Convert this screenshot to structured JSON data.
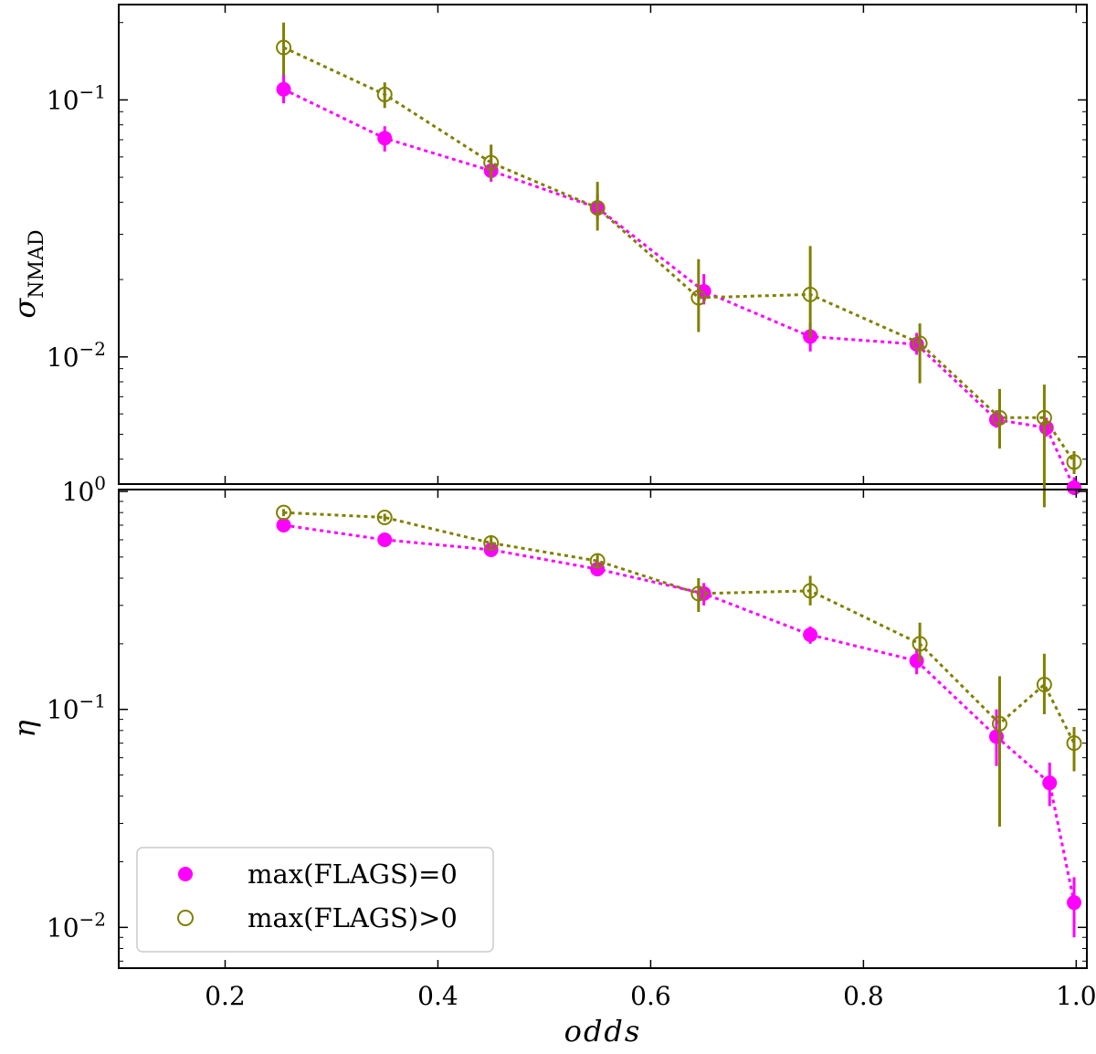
{
  "chart_data": {
    "type": "line",
    "xlabel": "odds",
    "xlim": [
      0.1,
      1.01
    ],
    "x_ticks": [
      {
        "v": 0.2,
        "t": "0.2"
      },
      {
        "v": 0.4,
        "t": "0.4"
      },
      {
        "v": 0.6,
        "t": "0.6"
      },
      {
        "v": 0.8,
        "t": "0.8"
      },
      {
        "v": 1.0,
        "t": "1.0"
      }
    ],
    "legend": {
      "position": "lower-left",
      "entries": [
        {
          "label": "max(FLAGS)=0",
          "marker": "filled-circle",
          "color": "#ff00ff"
        },
        {
          "label": "max(FLAGS)>0",
          "marker": "open-circle",
          "color": "#808000"
        }
      ]
    },
    "panels": [
      {
        "id": "sigma",
        "ylabel": "σ",
        "ylabel_sub": "NMAD",
        "yscale": "log",
        "ylim": [
          0.0032,
          0.235
        ],
        "y_ticks": [
          {
            "v": 0.1,
            "base": "10",
            "exp": "−1"
          },
          {
            "v": 0.01,
            "base": "10",
            "exp": "−2"
          }
        ],
        "series": [
          {
            "name": "max(FLAGS)=0",
            "color": "#ff00ff",
            "marker": "filled",
            "x": [
              0.255,
              0.35,
              0.45,
              0.55,
              0.65,
              0.75,
              0.85,
              0.925,
              0.972,
              0.998
            ],
            "y": [
              0.11,
              0.071,
              0.053,
              0.038,
              0.018,
              0.012,
              0.0112,
              0.0057,
              0.0053,
              0.0031
            ],
            "err": [
              [
                0.097,
                0.128
              ],
              [
                0.063,
                0.079
              ],
              [
                0.048,
                0.059
              ],
              [
                0.034,
                0.043
              ],
              [
                0.016,
                0.021
              ],
              [
                0.0105,
                0.0135
              ],
              [
                0.0102,
                0.0124
              ],
              [
                0.0053,
                0.0062
              ],
              [
                0.0049,
                0.0058
              ],
              [
                0.0029,
                0.0034
              ]
            ]
          },
          {
            "name": "max(FLAGS)>0",
            "color": "#808000",
            "marker": "open",
            "x": [
              0.255,
              0.35,
              0.45,
              0.55,
              0.645,
              0.75,
              0.853,
              0.928,
              0.97,
              0.998
            ],
            "y": [
              0.16,
              0.105,
              0.057,
              0.038,
              0.017,
              0.0175,
              0.0113,
              0.0058,
              0.0058,
              0.0039
            ],
            "err": [
              [
                0.125,
                0.2
              ],
              [
                0.093,
                0.117
              ],
              [
                0.049,
                0.067
              ],
              [
                0.031,
                0.048
              ],
              [
                0.0125,
                0.024
              ],
              [
                0.0118,
                0.027
              ],
              [
                0.0079,
                0.0135
              ],
              [
                0.0044,
                0.0075
              ],
              [
                0.0026,
                0.0078
              ],
              [
                0.0035,
                0.0043
              ]
            ]
          }
        ]
      },
      {
        "id": "eta",
        "ylabel": "η",
        "ylabel_sub": "",
        "yscale": "log",
        "ylim": [
          0.0065,
          1.02
        ],
        "y_ticks": [
          {
            "v": 1,
            "base": "10",
            "exp": "0"
          },
          {
            "v": 0.1,
            "base": "10",
            "exp": "−1"
          },
          {
            "v": 0.01,
            "base": "10",
            "exp": "−2"
          }
        ],
        "series": [
          {
            "name": "max(FLAGS)=0",
            "color": "#ff00ff",
            "marker": "filled",
            "x": [
              0.255,
              0.35,
              0.45,
              0.55,
              0.65,
              0.75,
              0.85,
              0.925,
              0.975,
              0.998
            ],
            "y": [
              0.7,
              0.6,
              0.54,
              0.44,
              0.34,
              0.22,
              0.167,
              0.075,
              0.046,
              0.013
            ],
            "err": [
              [
                0.66,
                0.74
              ],
              [
                0.57,
                0.63
              ],
              [
                0.51,
                0.57
              ],
              [
                0.41,
                0.47
              ],
              [
                0.3,
                0.38
              ],
              [
                0.2,
                0.24
              ],
              [
                0.145,
                0.19
              ],
              [
                0.055,
                0.1
              ],
              [
                0.036,
                0.057
              ],
              [
                0.009,
                0.017
              ]
            ]
          },
          {
            "name": "max(FLAGS)>0",
            "color": "#808000",
            "marker": "open",
            "x": [
              0.255,
              0.35,
              0.45,
              0.55,
              0.645,
              0.75,
              0.853,
              0.928,
              0.97,
              0.998
            ],
            "y": [
              0.8,
              0.76,
              0.58,
              0.48,
              0.34,
              0.35,
              0.2,
              0.086,
              0.13,
              0.07
            ],
            "err": [
              [
                0.77,
                0.83
              ],
              [
                0.73,
                0.79
              ],
              [
                0.55,
                0.62
              ],
              [
                0.45,
                0.52
              ],
              [
                0.28,
                0.4
              ],
              [
                0.3,
                0.41
              ],
              [
                0.165,
                0.25
              ],
              [
                0.029,
                0.142
              ],
              [
                0.095,
                0.18
              ],
              [
                0.052,
                0.083
              ]
            ]
          }
        ]
      }
    ]
  }
}
